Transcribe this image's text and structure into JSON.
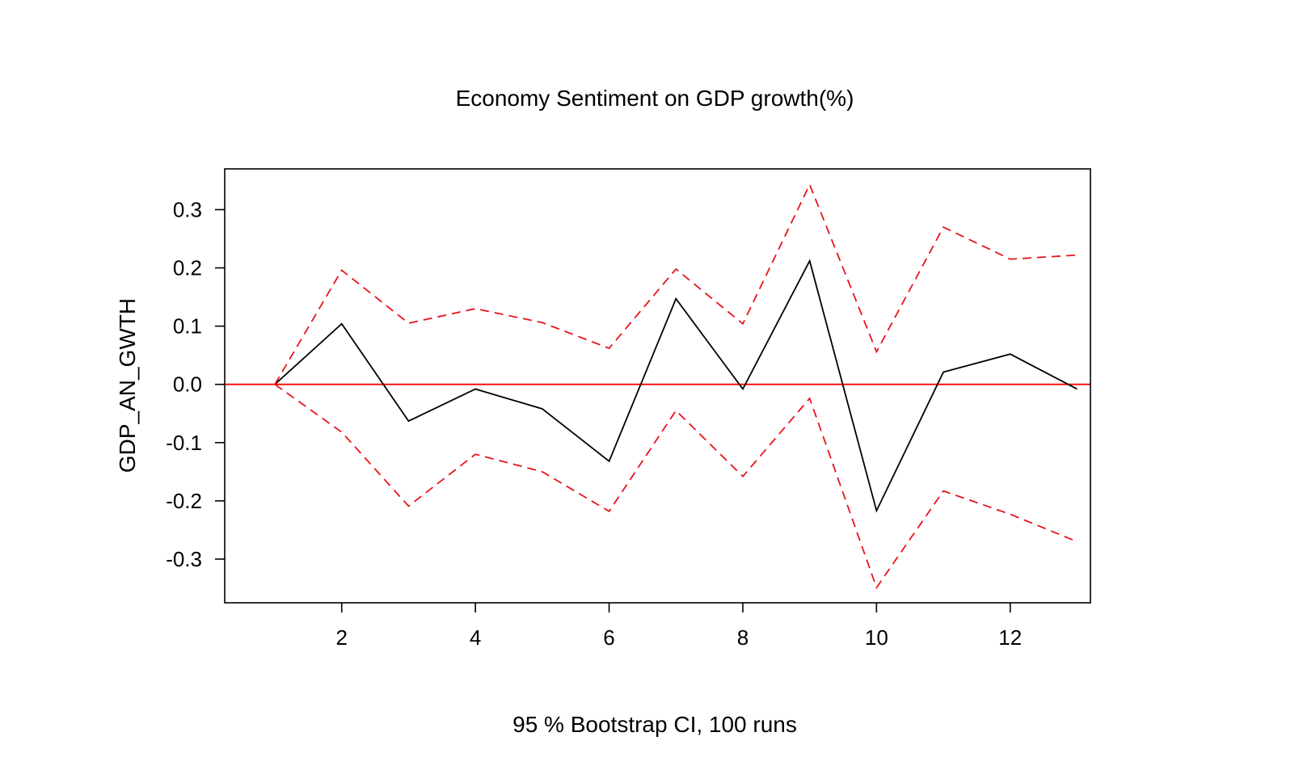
{
  "chart_data": {
    "type": "line",
    "title": "Economy Sentiment on GDP growth(%)",
    "xlabel": "95 % Bootstrap CI,  100 runs",
    "ylabel": "GDP_AN_GWTH",
    "xlim": [
      0.25,
      13.2
    ],
    "ylim": [
      -0.375,
      0.37
    ],
    "x_ticks": [
      2,
      4,
      6,
      8,
      10,
      12
    ],
    "y_ticks": [
      -0.3,
      -0.2,
      -0.1,
      0.0,
      0.1,
      0.2,
      0.3
    ],
    "y_tick_labels": [
      "-0.3",
      "-0.2",
      "-0.1",
      "0.0",
      "0.1",
      "0.2",
      "0.3"
    ],
    "x": [
      1,
      2,
      3,
      4,
      5,
      6,
      7,
      8,
      9,
      10,
      11,
      12,
      13
    ],
    "series": [
      {
        "values": [
          0.0,
          0.104,
          -0.063,
          -0.008,
          -0.042,
          -0.132,
          0.147,
          -0.008,
          0.212,
          -0.217,
          0.021,
          0.052,
          -0.008
        ],
        "color": "#000000",
        "style": "solid"
      },
      {
        "values": [
          0.0,
          0.196,
          0.105,
          0.13,
          0.106,
          0.062,
          0.198,
          0.104,
          0.343,
          0.056,
          0.27,
          0.215,
          0.222
        ],
        "color": "#e8131b",
        "style": "dashed"
      },
      {
        "values": [
          0.0,
          -0.082,
          -0.209,
          -0.12,
          -0.15,
          -0.218,
          -0.045,
          -0.158,
          -0.024,
          -0.349,
          -0.183,
          -0.223,
          -0.27
        ],
        "color": "#e8131b",
        "style": "dashed"
      }
    ],
    "reference_line": {
      "y": 0.0,
      "color": "#ff0000"
    },
    "grid": false,
    "legend": "none"
  }
}
